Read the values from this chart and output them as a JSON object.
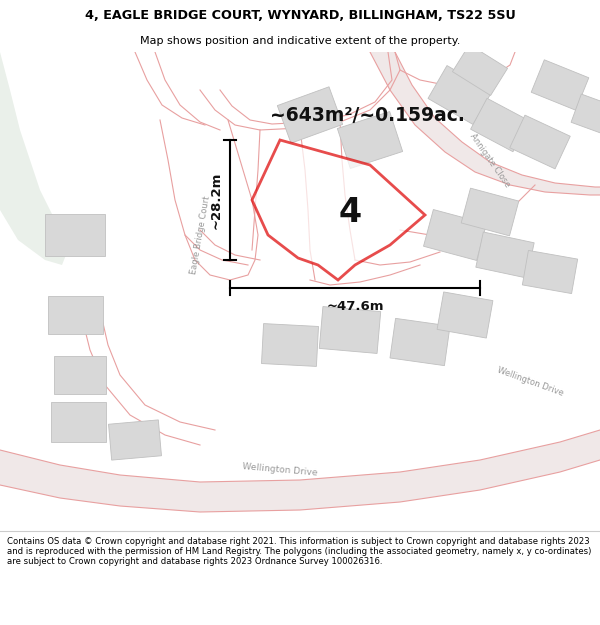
{
  "title_line1": "4, EAGLE BRIDGE COURT, WYNYARD, BILLINGHAM, TS22 5SU",
  "title_line2": "Map shows position and indicative extent of the property.",
  "area_label": "~643m²/~0.159ac.",
  "dim_vertical": "~28.2m",
  "dim_horizontal": "~47.6m",
  "plot_number": "4",
  "footer_text": "Contains OS data © Crown copyright and database right 2021. This information is subject to Crown copyright and database rights 2023 and is reproduced with the permission of HM Land Registry. The polygons (including the associated geometry, namely x, y co-ordinates) are subject to Crown copyright and database rights 2023 Ordnance Survey 100026316.",
  "map_bg": "#f7f6f4",
  "green_color": "#eaf0ea",
  "road_line_color": "#e8a0a0",
  "road_fill_color": "#f0e8e8",
  "building_color": "#d8d8d8",
  "building_edge_color": "#c0c0c0",
  "plot_line_color": "#dd0000",
  "annotation_color": "#111111",
  "road_label_color": "#aaaaaa",
  "header_bg": "#ffffff",
  "footer_bg": "#ffffff"
}
